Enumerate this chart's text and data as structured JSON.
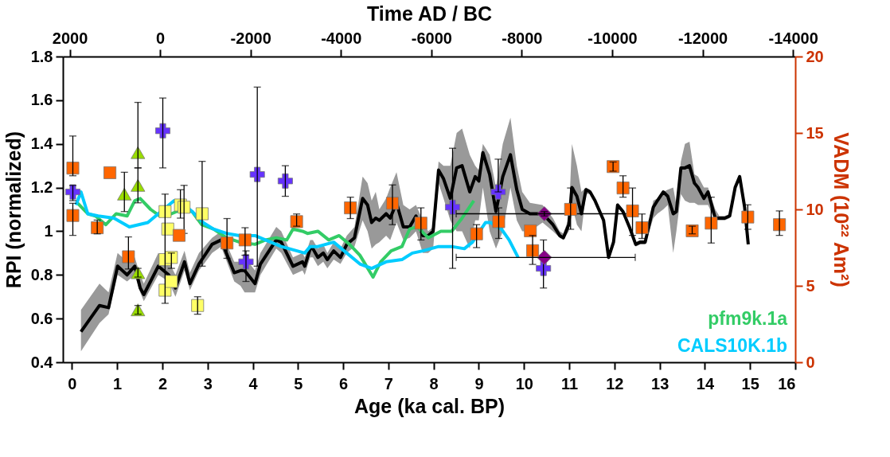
{
  "chart_data": {
    "type": "line",
    "xlabel": "Age (ka cal. BP)",
    "ylabel": "RPI (normalized)",
    "y2label": "VADM (10²² Am²)",
    "x2label": "Time AD / BC",
    "xlim": [
      -0.2,
      16
    ],
    "xticks": [
      0,
      1,
      2,
      3,
      4,
      5,
      6,
      7,
      8,
      9,
      10,
      11,
      12,
      13,
      14,
      15,
      16
    ],
    "x2lim": [
      2150,
      -14050
    ],
    "x2ticks": [
      2000,
      0,
      -2000,
      -4000,
      -6000,
      -8000,
      -10000,
      -12000,
      -14000
    ],
    "ylim": [
      0.4,
      1.8
    ],
    "yticks": [
      0.4,
      0.6,
      0.8,
      1,
      1.2,
      1.4,
      1.6,
      1.8
    ],
    "y2lim": [
      0,
      20
    ],
    "y2ticks": [
      0,
      5,
      10,
      15,
      20
    ],
    "grid": false,
    "legend": "bottom right",
    "line_style": "solid",
    "series": [
      {
        "color": "#000000",
        "x": [
          0.2,
          0.61,
          0.81,
          1.01,
          1.22,
          1.39,
          1.51,
          1.59,
          1.91,
          2.14,
          2.29,
          2.49,
          2.61,
          2.81,
          3.1,
          3.3,
          3.59,
          3.73,
          3.82,
          4.05,
          4.17,
          4.52,
          4.63,
          4.89,
          5.1,
          5.15,
          5.27,
          5.33,
          5.44,
          5.56,
          5.65,
          5.79,
          5.94,
          6.08,
          6.25,
          6.43,
          6.54,
          6.63,
          6.72,
          6.8,
          6.95,
          7.04,
          7.18,
          7.33,
          7.47,
          7.61,
          7.76,
          7.88,
          7.99,
          8.11,
          8.22,
          8.37,
          8.51,
          8.63,
          8.8,
          8.92,
          9.0,
          9.09,
          9.24,
          9.38,
          9.53,
          9.7,
          9.84,
          9.96,
          10.13,
          10.41,
          10.64,
          10.79,
          10.87,
          10.99,
          11.06,
          11.17,
          11.27,
          11.37,
          11.46,
          11.57,
          11.76,
          11.87,
          11.98,
          12.07,
          12.19,
          12.33,
          12.47,
          12.57,
          12.68,
          12.86,
          12.95,
          13.08,
          13.18,
          13.3,
          13.37,
          13.47,
          13.56,
          13.66,
          13.77,
          13.85,
          13.98,
          14.07,
          14.23,
          14.32,
          14.44,
          14.55,
          14.67,
          14.77,
          14.88,
          14.96
        ],
        "values": [
          0.54,
          0.66,
          0.65,
          0.84,
          0.8,
          0.84,
          0.74,
          0.71,
          0.84,
          0.8,
          0.74,
          0.86,
          0.76,
          0.85,
          0.94,
          0.96,
          0.81,
          0.82,
          0.82,
          0.76,
          0.85,
          0.96,
          0.95,
          0.84,
          0.86,
          0.84,
          0.92,
          0.92,
          0.88,
          0.9,
          0.87,
          0.91,
          0.88,
          0.94,
          0.97,
          1.15,
          1.12,
          1.04,
          1.06,
          1.05,
          1.08,
          1.06,
          1.13,
          1.02,
          1.02,
          1.07,
          0.98,
          0.98,
          1.0,
          1.28,
          1.24,
          1.15,
          1.29,
          1.3,
          1.18,
          1.25,
          1.23,
          1.36,
          1.26,
          1.09,
          1.25,
          1.35,
          1.19,
          1.1,
          1.08,
          1.08,
          1.03,
          0.98,
          0.97,
          1.03,
          1.2,
          1.16,
          1.08,
          1.19,
          1.18,
          1.14,
          1.05,
          0.88,
          0.95,
          1.12,
          1.09,
          1.02,
          0.94,
          0.95,
          0.95,
          1.11,
          1.14,
          1.18,
          1.16,
          1.08,
          1.09,
          1.29,
          1.29,
          1.3,
          1.22,
          1.2,
          1.15,
          1.18,
          1.06,
          1.06,
          1.06,
          1.07,
          1.2,
          1.25,
          1.11,
          0.94
        ],
        "lower": [
          0.45,
          0.58,
          0.62,
          0.8,
          0.77,
          0.8,
          0.72,
          0.68,
          0.8,
          0.77,
          0.7,
          0.82,
          0.73,
          0.82,
          0.9,
          0.93,
          0.77,
          0.75,
          0.72,
          0.72,
          0.8,
          0.92,
          0.9,
          0.8,
          0.82,
          0.8,
          0.88,
          0.88,
          0.84,
          0.86,
          0.83,
          0.87,
          0.85,
          0.9,
          0.93,
          1.05,
          1.0,
          0.92,
          0.94,
          0.95,
          0.98,
          0.96,
          1.04,
          0.96,
          0.97,
          1.0,
          0.9,
          0.9,
          0.92,
          1.22,
          1.15,
          1.05,
          1.0,
          1.0,
          0.92,
          1.05,
          1.05,
          1.2,
          1.0,
          0.92,
          1.0,
          1.2,
          1.05,
          1.0,
          1.0,
          1.04,
          1.0,
          0.97,
          0.96,
          1.0,
          1.12,
          1.03,
          1.0,
          1.17,
          1.17,
          1.13,
          1.04,
          0.87,
          0.94,
          1.11,
          1.08,
          1.01,
          0.93,
          0.94,
          0.94,
          1.06,
          1.08,
          1.1,
          1.12,
          0.9,
          1.0,
          1.17,
          1.14,
          1.13,
          1.13,
          1.12,
          1.12,
          1.12,
          1.05,
          1.05,
          1.05,
          1.06,
          1.19,
          1.24,
          1.1,
          0.93
        ],
        "upper": [
          0.64,
          0.76,
          0.72,
          0.9,
          0.86,
          0.88,
          0.8,
          0.76,
          0.9,
          0.86,
          0.8,
          0.91,
          0.81,
          0.9,
          0.97,
          1.0,
          0.86,
          0.86,
          0.88,
          0.82,
          0.9,
          1.02,
          1.0,
          0.88,
          0.9,
          0.88,
          0.96,
          0.96,
          0.92,
          0.94,
          0.9,
          0.95,
          0.92,
          0.98,
          1.02,
          1.25,
          1.22,
          1.14,
          1.18,
          1.1,
          1.15,
          1.2,
          1.27,
          1.12,
          1.1,
          1.12,
          1.05,
          1.0,
          1.02,
          1.32,
          1.3,
          1.3,
          1.45,
          1.47,
          1.35,
          1.3,
          1.28,
          1.4,
          1.35,
          1.2,
          1.4,
          1.52,
          1.3,
          1.18,
          1.13,
          1.12,
          1.06,
          1.0,
          0.99,
          1.06,
          1.4,
          1.3,
          1.18,
          1.2,
          1.19,
          1.15,
          1.06,
          0.89,
          0.96,
          1.13,
          1.1,
          1.03,
          0.95,
          0.96,
          0.96,
          1.14,
          1.15,
          1.18,
          1.19,
          1.2,
          1.12,
          1.32,
          1.4,
          1.41,
          1.26,
          1.25,
          1.2,
          1.2,
          1.1,
          1.07,
          1.07,
          1.08,
          1.21,
          1.26,
          1.12,
          0.95
        ]
      },
      {
        "name": "pfm9k.1a",
        "color": "#33cc66",
        "x": [
          0.12,
          0.35,
          0.52,
          0.75,
          0.98,
          1.22,
          1.39,
          1.51,
          1.74,
          1.94,
          2.2,
          2.43,
          2.66,
          2.87,
          3.13,
          3.42,
          3.71,
          4.05,
          4.28,
          4.52,
          4.75,
          4.89,
          5.1,
          5.21,
          5.44,
          5.68,
          5.91,
          6.14,
          6.37,
          6.66,
          6.83,
          7.06,
          7.3,
          7.47,
          7.64,
          7.88,
          8.16,
          8.4,
          8.63,
          8.89
        ],
        "values": [
          1.13,
          1.08,
          1.07,
          1.03,
          1.08,
          1.07,
          1.14,
          1.15,
          1.1,
          1.07,
          1.08,
          1.1,
          1.09,
          1.03,
          1.01,
          0.97,
          0.95,
          0.94,
          0.96,
          0.97,
          0.96,
          1.01,
          1.0,
          0.99,
          1.0,
          0.96,
          0.98,
          0.94,
          0.89,
          0.79,
          0.86,
          0.91,
          0.93,
          1.01,
          1.02,
          0.97,
          1.0,
          1.0,
          1.06,
          1.14
        ]
      },
      {
        "name": "CALS10K.1b",
        "color": "#00ccff",
        "x": [
          0.09,
          0.2,
          0.35,
          0.58,
          0.93,
          1.27,
          1.68,
          1.91,
          2.26,
          2.49,
          2.66,
          2.9,
          3.13,
          3.42,
          3.71,
          4.05,
          4.28,
          4.63,
          4.98,
          5.15,
          5.27,
          5.44,
          5.79,
          6.08,
          6.37,
          6.63,
          6.95,
          7.3,
          7.53,
          7.76,
          8.11,
          8.4,
          8.68,
          8.86,
          9.15,
          9.26,
          9.5,
          9.67,
          9.87
        ],
        "values": [
          1.12,
          1.18,
          1.08,
          1.07,
          1.06,
          1.02,
          1.04,
          1.08,
          1.14,
          1.12,
          1.09,
          1.04,
          1.01,
          0.99,
          0.98,
          0.98,
          0.96,
          0.93,
          0.91,
          0.9,
          0.93,
          0.93,
          0.95,
          0.9,
          0.85,
          0.83,
          0.86,
          0.87,
          0.9,
          0.91,
          0.93,
          0.93,
          0.92,
          0.95,
          1.04,
          1.04,
          1.01,
          0.96,
          0.88
        ]
      },
      {
        "type": "scatter",
        "axis": "y2",
        "marker": "square",
        "color": "#ff6600",
        "x": [
          0.02,
          0.02,
          0.56,
          0.84,
          1.25,
          2.37,
          3.43,
          3.83,
          4.97,
          6.16,
          7.09,
          7.72,
          8.95,
          9.44,
          10.14,
          10.19,
          11.03,
          11.97,
          12.19,
          12.4,
          12.61,
          13.72,
          14.14,
          14.95,
          15.65
        ],
        "values": [
          12.7,
          9.6,
          8.8,
          12.4,
          6.9,
          8.3,
          7.8,
          8.0,
          9.2,
          10.1,
          10.4,
          9.1,
          8.4,
          9.2,
          8.6,
          7.3,
          10.0,
          12.8,
          11.4,
          9.9,
          8.8,
          8.6,
          9.1,
          9.5,
          9.0
        ],
        "errors": [
          [
            12.2,
            14.8
          ],
          [
            8.3,
            10.4
          ],
          [
            8.4,
            9.3
          ],
          null,
          [
            6.1,
            8.2
          ],
          null,
          [
            6.8,
            9.4
          ],
          [
            7.0,
            8.8
          ],
          [
            8.9,
            9.7
          ],
          [
            9.4,
            10.8
          ],
          [
            9.0,
            11.6
          ],
          [
            8.0,
            10.1
          ],
          [
            7.5,
            9.0
          ],
          [
            8.1,
            10.1
          ],
          null,
          [
            6.4,
            8.3
          ],
          [
            8.7,
            11.4
          ],
          [
            12.5,
            13.1
          ],
          [
            10.8,
            12.2
          ],
          [
            8.3,
            11.4
          ],
          [
            8.1,
            9.7
          ],
          [
            8.4,
            8.9
          ],
          [
            7.8,
            10.8
          ],
          [
            8.7,
            10.3
          ],
          [
            8.3,
            9.9
          ]
        ]
      },
      {
        "type": "scatter",
        "marker": "cross",
        "color": "#6633ff",
        "x": [
          0.02,
          2.01,
          3.85,
          4.1,
          4.72,
          8.42,
          9.43,
          10.43
        ],
        "values": [
          1.18,
          1.46,
          0.86,
          1.26,
          1.23,
          1.11,
          1.18,
          0.83
        ],
        "errors": [
          [
            1.14,
            1.21
          ],
          [
            1.29,
            1.61
          ],
          [
            0.77,
            0.91
          ],
          [
            0.84,
            1.66
          ],
          [
            1.16,
            1.3
          ],
          [
            0.83,
            1.38
          ],
          [
            1.18,
            1.33
          ],
          [
            0.74,
            0.96
          ]
        ]
      },
      {
        "type": "scatter",
        "marker": "diamond",
        "color": "#880088",
        "x": [
          10.45,
          10.45
        ],
        "values": [
          1.08,
          0.88
        ],
        "errors": [
          [
            1.07,
            1.09
          ],
          null
        ],
        "xerrors": [
          [
            8.5,
            12.46
          ],
          [
            8.5,
            12.46
          ]
        ]
      },
      {
        "type": "scatter",
        "marker": "triangle",
        "color": "#99dd00",
        "x": [
          1.16,
          1.46,
          1.46,
          1.46,
          1.46
        ],
        "values": [
          1.17,
          1.36,
          1.21,
          0.81,
          0.64
        ],
        "errors": [
          [
            1.09,
            1.27
          ],
          [
            1.29,
            1.59
          ],
          [
            1.13,
            1.29
          ],
          [
            0.79,
            0.83
          ],
          [
            0.62,
            0.66
          ]
        ]
      },
      {
        "type": "scatter",
        "marker": "square",
        "color": "#ffff66",
        "x": [
          2.06,
          2.12,
          2.06,
          2.2,
          2.06,
          2.2,
          2.4,
          2.48,
          2.88,
          2.78
        ],
        "values": [
          1.09,
          1.01,
          0.87,
          0.88,
          0.73,
          0.77,
          1.12,
          1.11,
          1.08,
          0.66
        ],
        "errors": [
          [
            0.67,
            1.17
          ],
          null,
          null,
          [
            0.83,
            0.9
          ],
          null,
          null,
          [
            1.06,
            1.19
          ],
          [
            0.99,
            1.21
          ],
          [
            0.84,
            1.32
          ],
          [
            0.62,
            0.7
          ]
        ]
      }
    ]
  }
}
